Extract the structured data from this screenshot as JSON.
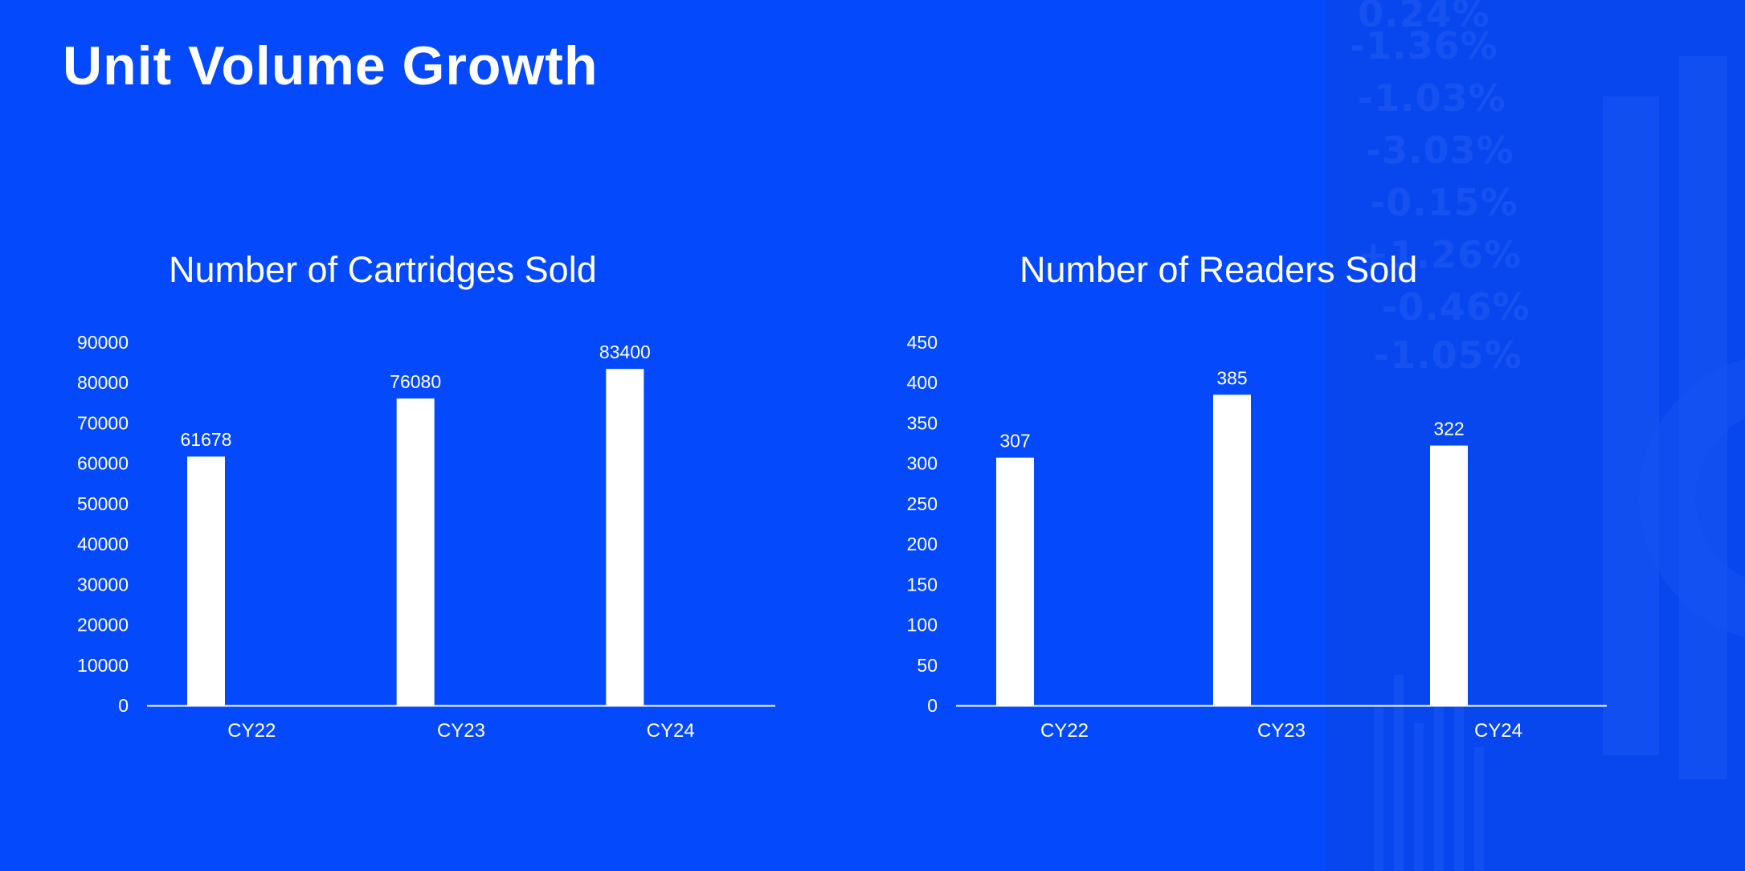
{
  "page": {
    "title": "Unit Volume Growth"
  },
  "colors": {
    "background": "#0549FD",
    "bar": "#FFFFFF",
    "text": "#FFFFFF",
    "axis": "#FFFFFF"
  },
  "chart_data": [
    {
      "type": "bar",
      "title": "Number of Cartridges Sold",
      "categories": [
        "CY22",
        "CY23",
        "CY24"
      ],
      "values": [
        61678,
        76080,
        83400
      ],
      "data_labels": [
        "61678",
        "76080",
        "83400"
      ],
      "yticks": [
        0,
        10000,
        20000,
        30000,
        40000,
        50000,
        60000,
        70000,
        80000,
        90000
      ],
      "ylim": [
        0,
        90000
      ],
      "xlabel": "",
      "ylabel": "",
      "grid": false,
      "legend": "none"
    },
    {
      "type": "bar",
      "title": "Number of Readers Sold",
      "categories": [
        "CY22",
        "CY23",
        "CY24"
      ],
      "values": [
        307,
        385,
        322
      ],
      "data_labels": [
        "307",
        "385",
        "322"
      ],
      "yticks": [
        0,
        50,
        100,
        150,
        200,
        250,
        300,
        350,
        400,
        450
      ],
      "ylim": [
        0,
        450
      ],
      "xlabel": "",
      "ylabel": "",
      "grid": false,
      "legend": "none"
    }
  ]
}
